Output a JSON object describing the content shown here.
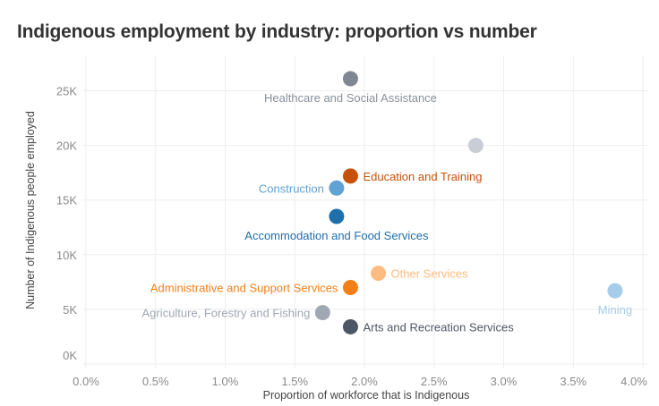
{
  "chart_data": {
    "type": "scatter",
    "title": "Indigenous employment by industry: proportion vs number",
    "xlabel": "Proportion of workforce that is Indigenous",
    "ylabel": "Number of Indigenous people employed",
    "xlim": [
      0,
      4.0
    ],
    "ylim": [
      0,
      27000
    ],
    "x_ticks": [
      "0.0%",
      "0.5%",
      "1.0%",
      "1.5%",
      "2.0%",
      "2.5%",
      "3.0%",
      "3.5%",
      "4.0%"
    ],
    "y_ticks": [
      "0K",
      "5K",
      "10K",
      "15K",
      "20K",
      "25K"
    ],
    "grid": true,
    "points": [
      {
        "label": "Healthcare and Social Assistance",
        "x": 1.9,
        "y": 26100,
        "color": "#7f8792"
      },
      {
        "label": "",
        "x": 2.8,
        "y": 20000,
        "color": "#c9ced6"
      },
      {
        "label": "Education and Training",
        "x": 1.9,
        "y": 17200,
        "color": "#c8510a"
      },
      {
        "label": "Construction",
        "x": 1.8,
        "y": 16100,
        "color": "#5fa2d4"
      },
      {
        "label": "Accommodation and Food Services",
        "x": 1.8,
        "y": 13500,
        "color": "#1f6fab"
      },
      {
        "label": "Other Services",
        "x": 2.1,
        "y": 8300,
        "color": "#ffbb80"
      },
      {
        "label": "Administrative and Support Services",
        "x": 1.9,
        "y": 7000,
        "color": "#f57f17"
      },
      {
        "label": "Mining",
        "x": 3.8,
        "y": 6700,
        "color": "#a6cceb"
      },
      {
        "label": "Agriculture, Forestry and Fishing",
        "x": 1.7,
        "y": 4700,
        "color": "#a0a8b4"
      },
      {
        "label": "Arts and Recreation Services",
        "x": 1.9,
        "y": 3400,
        "color": "#4e5766"
      }
    ]
  }
}
